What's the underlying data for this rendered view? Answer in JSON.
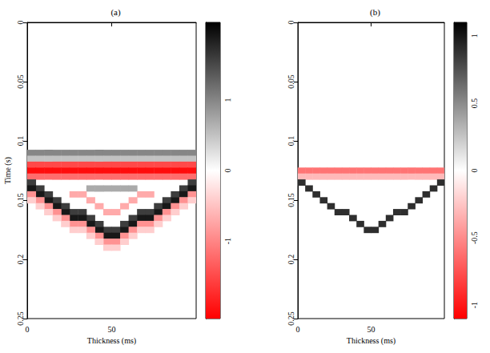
{
  "chart_data": [
    {
      "type": "heatmap",
      "title": "(a)",
      "x_label": "Thickness (ms)",
      "y_label": "Time (s)",
      "xlim": [
        0,
        100
      ],
      "xticks": [
        0,
        50
      ],
      "ylim": [
        0,
        0.25
      ],
      "yticks": [
        0,
        0.05,
        0.1,
        0.15,
        0.2,
        0.25
      ],
      "colors": [
        "#ff0000",
        "#ffffff",
        "#000000"
      ],
      "colorbar": {
        "range": [
          -2.1,
          2.1
        ],
        "ticks": [
          -1,
          0,
          1
        ]
      },
      "cells": [
        [
          2.5,
          0.11,
          1
        ],
        [
          7.5,
          0.11,
          1
        ],
        [
          12.5,
          0.11,
          1
        ],
        [
          17.5,
          0.11,
          1
        ],
        [
          22.5,
          0.11,
          1
        ],
        [
          27.5,
          0.11,
          1
        ],
        [
          32.5,
          0.11,
          1
        ],
        [
          37.5,
          0.11,
          1
        ],
        [
          42.5,
          0.11,
          1
        ],
        [
          47.5,
          0.11,
          1
        ],
        [
          52.5,
          0.11,
          1
        ],
        [
          57.5,
          0.11,
          1
        ],
        [
          62.5,
          0.11,
          1
        ],
        [
          67.5,
          0.11,
          1
        ],
        [
          72.5,
          0.11,
          1
        ],
        [
          77.5,
          0.11,
          1
        ],
        [
          82.5,
          0.11,
          1
        ],
        [
          87.5,
          0.11,
          1
        ],
        [
          92.5,
          0.11,
          1
        ],
        [
          97.5,
          0.11,
          1
        ],
        [
          2.5,
          0.115,
          0.5
        ],
        [
          7.5,
          0.115,
          0.5
        ],
        [
          12.5,
          0.115,
          0.5
        ],
        [
          17.5,
          0.115,
          0.5
        ],
        [
          22.5,
          0.115,
          0.5
        ],
        [
          27.5,
          0.115,
          0.5
        ],
        [
          32.5,
          0.115,
          0.5
        ],
        [
          37.5,
          0.115,
          0.5
        ],
        [
          42.5,
          0.115,
          0.5
        ],
        [
          47.5,
          0.115,
          0.5
        ],
        [
          52.5,
          0.115,
          0.5
        ],
        [
          57.5,
          0.115,
          0.5
        ],
        [
          62.5,
          0.115,
          0.5
        ],
        [
          67.5,
          0.115,
          0.5
        ],
        [
          72.5,
          0.115,
          0.5
        ],
        [
          77.5,
          0.115,
          0.5
        ],
        [
          82.5,
          0.115,
          0.5
        ],
        [
          87.5,
          0.115,
          0.5
        ],
        [
          92.5,
          0.115,
          0.5
        ],
        [
          97.5,
          0.115,
          0.5
        ],
        [
          2.5,
          0.12,
          -1.5
        ],
        [
          7.5,
          0.12,
          -1.5
        ],
        [
          12.5,
          0.12,
          -1.5
        ],
        [
          17.5,
          0.12,
          -1.5
        ],
        [
          22.5,
          0.12,
          -1.5
        ],
        [
          27.5,
          0.12,
          -1.5
        ],
        [
          32.5,
          0.12,
          -1.5
        ],
        [
          37.5,
          0.12,
          -1.5
        ],
        [
          42.5,
          0.12,
          -1.5
        ],
        [
          47.5,
          0.12,
          -1.5
        ],
        [
          52.5,
          0.12,
          -1.5
        ],
        [
          57.5,
          0.12,
          -1.5
        ],
        [
          62.5,
          0.12,
          -1.5
        ],
        [
          67.5,
          0.12,
          -1.5
        ],
        [
          72.5,
          0.12,
          -1.5
        ],
        [
          77.5,
          0.12,
          -1.5
        ],
        [
          82.5,
          0.12,
          -1.5
        ],
        [
          87.5,
          0.12,
          -1.5
        ],
        [
          92.5,
          0.12,
          -1.5
        ],
        [
          97.5,
          0.12,
          -1.5
        ],
        [
          2.5,
          0.125,
          -2
        ],
        [
          7.5,
          0.125,
          -2
        ],
        [
          12.5,
          0.125,
          -2
        ],
        [
          17.5,
          0.125,
          -2
        ],
        [
          22.5,
          0.125,
          -2
        ],
        [
          27.5,
          0.125,
          -2
        ],
        [
          32.5,
          0.125,
          -2
        ],
        [
          37.5,
          0.125,
          -2
        ],
        [
          42.5,
          0.125,
          -2
        ],
        [
          47.5,
          0.125,
          -2
        ],
        [
          52.5,
          0.125,
          -2
        ],
        [
          57.5,
          0.125,
          -2
        ],
        [
          62.5,
          0.125,
          -2
        ],
        [
          67.5,
          0.125,
          -2
        ],
        [
          72.5,
          0.125,
          -2
        ],
        [
          77.5,
          0.125,
          -2
        ],
        [
          82.5,
          0.125,
          -2
        ],
        [
          87.5,
          0.125,
          -2
        ],
        [
          92.5,
          0.125,
          -2
        ],
        [
          97.5,
          0.125,
          -2
        ],
        [
          2.5,
          0.13,
          -1.2
        ],
        [
          7.5,
          0.13,
          -1.2
        ],
        [
          12.5,
          0.13,
          -1.2
        ],
        [
          17.5,
          0.13,
          -1.2
        ],
        [
          22.5,
          0.13,
          -1.2
        ],
        [
          27.5,
          0.13,
          -1.2
        ],
        [
          32.5,
          0.13,
          -1.2
        ],
        [
          37.5,
          0.13,
          -1.2
        ],
        [
          42.5,
          0.13,
          -1.2
        ],
        [
          47.5,
          0.13,
          -1.2
        ],
        [
          52.5,
          0.13,
          -1.2
        ],
        [
          57.5,
          0.13,
          -1.2
        ],
        [
          62.5,
          0.13,
          -1.2
        ],
        [
          67.5,
          0.13,
          -1.2
        ],
        [
          72.5,
          0.13,
          -1.2
        ],
        [
          77.5,
          0.13,
          -1.2
        ],
        [
          82.5,
          0.13,
          -1.2
        ],
        [
          87.5,
          0.13,
          -1.2
        ],
        [
          92.5,
          0.13,
          -1.2
        ],
        [
          97.5,
          0.13,
          -1.2
        ],
        [
          37.5,
          0.14,
          0.7
        ],
        [
          42.5,
          0.14,
          0.7
        ],
        [
          47.5,
          0.14,
          0.7
        ],
        [
          52.5,
          0.14,
          0.7
        ],
        [
          57.5,
          0.14,
          0.7
        ],
        [
          62.5,
          0.14,
          0.7
        ],
        [
          27.5,
          0.145,
          -0.7
        ],
        [
          32.5,
          0.145,
          -0.7
        ],
        [
          37.5,
          0.15,
          -0.7
        ],
        [
          42.5,
          0.155,
          -0.7
        ],
        [
          47.5,
          0.16,
          -0.7
        ],
        [
          52.5,
          0.16,
          -0.7
        ],
        [
          57.5,
          0.155,
          -0.7
        ],
        [
          62.5,
          0.15,
          -0.7
        ],
        [
          67.5,
          0.145,
          -0.7
        ],
        [
          72.5,
          0.145,
          -0.7
        ],
        [
          2.5,
          0.135,
          1.6
        ],
        [
          7.5,
          0.14,
          1.6
        ],
        [
          12.5,
          0.145,
          1.6
        ],
        [
          17.5,
          0.15,
          1.6
        ],
        [
          22.5,
          0.155,
          1.6
        ],
        [
          27.5,
          0.16,
          1.6
        ],
        [
          32.5,
          0.16,
          1.6
        ],
        [
          37.5,
          0.165,
          1.6
        ],
        [
          42.5,
          0.17,
          1.6
        ],
        [
          47.5,
          0.175,
          1.6
        ],
        [
          52.5,
          0.175,
          1.6
        ],
        [
          57.5,
          0.17,
          1.6
        ],
        [
          62.5,
          0.165,
          1.6
        ],
        [
          67.5,
          0.16,
          1.6
        ],
        [
          72.5,
          0.16,
          1.6
        ],
        [
          77.5,
          0.155,
          1.6
        ],
        [
          82.5,
          0.15,
          1.6
        ],
        [
          87.5,
          0.145,
          1.6
        ],
        [
          92.5,
          0.14,
          1.6
        ],
        [
          97.5,
          0.135,
          1.6
        ],
        [
          2.5,
          0.14,
          1.9
        ],
        [
          7.5,
          0.145,
          1.9
        ],
        [
          12.5,
          0.15,
          1.9
        ],
        [
          17.5,
          0.155,
          1.9
        ],
        [
          22.5,
          0.16,
          1.9
        ],
        [
          27.5,
          0.165,
          1.9
        ],
        [
          32.5,
          0.165,
          1.9
        ],
        [
          37.5,
          0.17,
          1.9
        ],
        [
          42.5,
          0.175,
          1.9
        ],
        [
          47.5,
          0.18,
          1.9
        ],
        [
          52.5,
          0.18,
          1.9
        ],
        [
          57.5,
          0.175,
          1.9
        ],
        [
          62.5,
          0.17,
          1.9
        ],
        [
          67.5,
          0.165,
          1.9
        ],
        [
          72.5,
          0.165,
          1.9
        ],
        [
          77.5,
          0.16,
          1.9
        ],
        [
          82.5,
          0.155,
          1.9
        ],
        [
          87.5,
          0.15,
          1.9
        ],
        [
          92.5,
          0.145,
          1.9
        ],
        [
          97.5,
          0.14,
          1.9
        ],
        [
          2.5,
          0.145,
          -0.9
        ],
        [
          7.5,
          0.15,
          -0.9
        ],
        [
          12.5,
          0.155,
          -0.9
        ],
        [
          17.5,
          0.16,
          -0.9
        ],
        [
          22.5,
          0.165,
          -0.9
        ],
        [
          27.5,
          0.17,
          -0.9
        ],
        [
          32.5,
          0.17,
          -0.9
        ],
        [
          37.5,
          0.175,
          -0.9
        ],
        [
          42.5,
          0.18,
          -0.9
        ],
        [
          47.5,
          0.185,
          -0.9
        ],
        [
          52.5,
          0.185,
          -0.9
        ],
        [
          57.5,
          0.18,
          -0.9
        ],
        [
          62.5,
          0.175,
          -0.9
        ],
        [
          67.5,
          0.17,
          -0.9
        ],
        [
          72.5,
          0.17,
          -0.9
        ],
        [
          77.5,
          0.165,
          -0.9
        ],
        [
          82.5,
          0.16,
          -0.9
        ],
        [
          87.5,
          0.155,
          -0.9
        ],
        [
          92.5,
          0.15,
          -0.9
        ],
        [
          97.5,
          0.145,
          -0.9
        ],
        [
          2.5,
          0.15,
          -0.4
        ],
        [
          7.5,
          0.155,
          -0.4
        ],
        [
          12.5,
          0.16,
          -0.4
        ],
        [
          17.5,
          0.165,
          -0.4
        ],
        [
          22.5,
          0.17,
          -0.4
        ],
        [
          27.5,
          0.175,
          -0.4
        ],
        [
          32.5,
          0.175,
          -0.4
        ],
        [
          37.5,
          0.18,
          -0.4
        ],
        [
          42.5,
          0.185,
          -0.4
        ],
        [
          47.5,
          0.19,
          -0.4
        ],
        [
          52.5,
          0.19,
          -0.4
        ],
        [
          57.5,
          0.185,
          -0.4
        ],
        [
          62.5,
          0.18,
          -0.4
        ],
        [
          67.5,
          0.175,
          -0.4
        ],
        [
          72.5,
          0.175,
          -0.4
        ],
        [
          77.5,
          0.17,
          -0.4
        ],
        [
          82.5,
          0.165,
          -0.4
        ],
        [
          87.5,
          0.16,
          -0.4
        ],
        [
          92.5,
          0.155,
          -0.4
        ],
        [
          97.5,
          0.15,
          -0.4
        ]
      ]
    },
    {
      "type": "heatmap",
      "title": "(b)",
      "x_label": "Thickness (ms)",
      "xlim": [
        0,
        100
      ],
      "xticks": [
        0,
        50
      ],
      "ylim": [
        0,
        0.25
      ],
      "yticks": [
        0,
        0.05,
        0.1,
        0.15,
        0.2,
        0.25
      ],
      "colors": [
        "#ff0000",
        "#ffffff",
        "#000000"
      ],
      "colorbar": {
        "range": [
          -1.1,
          1.1
        ],
        "ticks": [
          -1,
          -0.5,
          0,
          0.5,
          1
        ]
      },
      "cells": [
        [
          2.5,
          0.125,
          -0.6
        ],
        [
          7.5,
          0.125,
          -0.6
        ],
        [
          12.5,
          0.125,
          -0.6
        ],
        [
          17.5,
          0.125,
          -0.6
        ],
        [
          22.5,
          0.125,
          -0.6
        ],
        [
          27.5,
          0.125,
          -0.6
        ],
        [
          32.5,
          0.125,
          -0.6
        ],
        [
          37.5,
          0.125,
          -0.6
        ],
        [
          42.5,
          0.125,
          -0.6
        ],
        [
          47.5,
          0.125,
          -0.6
        ],
        [
          52.5,
          0.125,
          -0.6
        ],
        [
          57.5,
          0.125,
          -0.6
        ],
        [
          62.5,
          0.125,
          -0.6
        ],
        [
          67.5,
          0.125,
          -0.6
        ],
        [
          72.5,
          0.125,
          -0.6
        ],
        [
          77.5,
          0.125,
          -0.6
        ],
        [
          82.5,
          0.125,
          -0.6
        ],
        [
          87.5,
          0.125,
          -0.6
        ],
        [
          92.5,
          0.125,
          -0.6
        ],
        [
          97.5,
          0.125,
          -0.6
        ],
        [
          2.5,
          0.13,
          -0.3
        ],
        [
          7.5,
          0.13,
          -0.3
        ],
        [
          12.5,
          0.13,
          -0.3
        ],
        [
          17.5,
          0.13,
          -0.3
        ],
        [
          22.5,
          0.13,
          -0.3
        ],
        [
          27.5,
          0.13,
          -0.3
        ],
        [
          32.5,
          0.13,
          -0.3
        ],
        [
          37.5,
          0.13,
          -0.3
        ],
        [
          42.5,
          0.13,
          -0.3
        ],
        [
          47.5,
          0.13,
          -0.3
        ],
        [
          52.5,
          0.13,
          -0.3
        ],
        [
          57.5,
          0.13,
          -0.3
        ],
        [
          62.5,
          0.13,
          -0.3
        ],
        [
          67.5,
          0.13,
          -0.3
        ],
        [
          72.5,
          0.13,
          -0.3
        ],
        [
          77.5,
          0.13,
          -0.3
        ],
        [
          82.5,
          0.13,
          -0.3
        ],
        [
          87.5,
          0.13,
          -0.3
        ],
        [
          92.5,
          0.13,
          -0.3
        ],
        [
          97.5,
          0.13,
          -0.3
        ],
        [
          2.5,
          0.135,
          0.9
        ],
        [
          7.5,
          0.14,
          0.9
        ],
        [
          12.5,
          0.145,
          0.9
        ],
        [
          17.5,
          0.15,
          0.9
        ],
        [
          22.5,
          0.155,
          0.9
        ],
        [
          27.5,
          0.16,
          0.9
        ],
        [
          32.5,
          0.16,
          0.9
        ],
        [
          37.5,
          0.165,
          0.9
        ],
        [
          42.5,
          0.17,
          0.9
        ],
        [
          47.5,
          0.175,
          0.9
        ],
        [
          52.5,
          0.175,
          0.9
        ],
        [
          57.5,
          0.17,
          0.9
        ],
        [
          62.5,
          0.165,
          0.9
        ],
        [
          67.5,
          0.16,
          0.9
        ],
        [
          72.5,
          0.16,
          0.9
        ],
        [
          77.5,
          0.155,
          0.9
        ],
        [
          82.5,
          0.15,
          0.9
        ],
        [
          87.5,
          0.145,
          0.9
        ],
        [
          92.5,
          0.14,
          0.9
        ],
        [
          97.5,
          0.135,
          0.9
        ]
      ]
    }
  ]
}
